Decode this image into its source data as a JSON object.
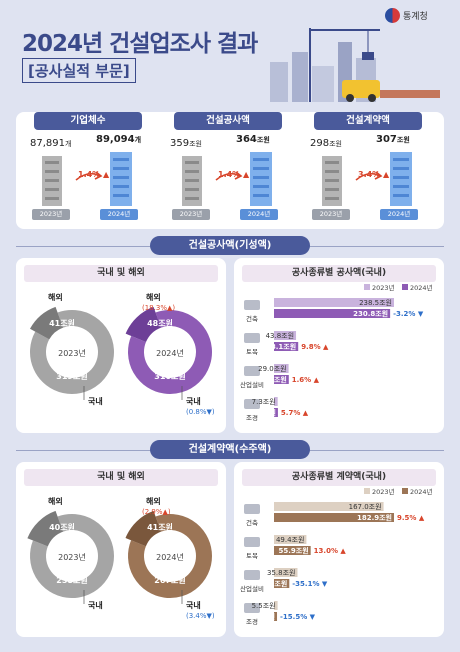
{
  "header": {
    "title": "2024년 건설업조사 결과",
    "subtitle": "[공사실적 부문]",
    "logo_text": "통계청"
  },
  "summary": [
    {
      "label": "기업체수",
      "v2023": "87,891",
      "v2023_unit": "개",
      "v2024": "89,094",
      "v2024_unit": "개",
      "change": "1.4%",
      "year2023": "2023년",
      "year2024": "2024년"
    },
    {
      "label": "건설공사액",
      "v2023": "359",
      "v2023_unit": "조원",
      "v2024": "364",
      "v2024_unit": "조원",
      "change": "1.4%",
      "year2023": "2023년",
      "year2024": "2024년"
    },
    {
      "label": "건설계약액",
      "v2023": "298",
      "v2023_unit": "조원",
      "v2024": "307",
      "v2024_unit": "조원",
      "change": "3.4%",
      "year2023": "2023년",
      "year2024": "2024년"
    }
  ],
  "section1": {
    "title": "건설공사액(기성액)",
    "donut_title": "국내 및 해외",
    "bar_title": "공사종류별 공사액(국내)",
    "d2023": {
      "year": "2023년",
      "overseas_label": "해외",
      "overseas": "41",
      "domestic_label": "국내",
      "domestic": "319",
      "unit": "조원"
    },
    "d2024": {
      "year": "2024년",
      "overseas_label": "해외",
      "overseas_change": "(18.3%",
      "overseas": "48",
      "domestic_label": "국내",
      "domestic_change": "(0.8%",
      "domestic": "316",
      "unit": "조원"
    }
  },
  "section2": {
    "title": "건설계약액(수주액)",
    "donut_title": "국내 및 해외",
    "bar_title": "공사종류별 계약액(국내)",
    "d2023": {
      "year": "2023년",
      "overseas_label": "해외",
      "overseas": "40",
      "domestic_label": "국내",
      "domestic": "258",
      "unit": "조원"
    },
    "d2024": {
      "year": "2024년",
      "overseas_label": "해외",
      "overseas_change": "(2.9%",
      "overseas": "41",
      "domestic_label": "국내",
      "domestic_change": "(3.4%",
      "domestic": "267",
      "unit": "조원"
    }
  },
  "colors": {
    "navy": "#4a5a9b",
    "purple_light": "#c9b3dd",
    "purple": "#8e5bb5",
    "brown_light": "#ddd0c2",
    "brown": "#9c7556",
    "gray": "#a5a5a5",
    "red": "#d8452b",
    "blue": "#2e6fc9"
  },
  "chart_data": [
    {
      "type": "bar",
      "title": "공사종류별 공사액(국내)",
      "categories": [
        "건축",
        "토목",
        "산업설비",
        "조경"
      ],
      "unit": "조원",
      "series": [
        {
          "name": "2023년",
          "values": [
            238.5,
            43.8,
            29.0,
            7.3
          ],
          "color": "#c9b3dd"
        },
        {
          "name": "2024년",
          "values": [
            230.8,
            48.1,
            29.4,
            7.8
          ],
          "color": "#8e5bb5"
        }
      ],
      "changes": [
        "-3.2%",
        "9.8%",
        "1.6%",
        "5.7%"
      ],
      "change_dir": [
        "down",
        "up",
        "up",
        "up"
      ],
      "legend": "top-right"
    },
    {
      "type": "bar",
      "title": "공사종류별 계약액(국내)",
      "categories": [
        "건축",
        "토목",
        "산업설비",
        "조경"
      ],
      "unit": "조원",
      "series": [
        {
          "name": "2023년",
          "values": [
            167.0,
            49.4,
            35.8,
            5.5
          ],
          "color": "#ddd0c2"
        },
        {
          "name": "2024년",
          "values": [
            182.9,
            55.9,
            23.3,
            4.6
          ],
          "color": "#9c7556"
        }
      ],
      "changes": [
        "9.5%",
        "13.0%",
        "-35.1%",
        "-15.5%"
      ],
      "change_dir": [
        "up",
        "up",
        "down",
        "down"
      ],
      "legend": "top-right"
    },
    {
      "type": "pie",
      "title": "국내 및 해외",
      "series": [
        {
          "name": "2023년",
          "labels": [
            "해외",
            "국내"
          ],
          "values": [
            41,
            319
          ]
        },
        {
          "name": "2024년",
          "labels": [
            "해외",
            "국내"
          ],
          "values": [
            48,
            316
          ]
        }
      ]
    },
    {
      "type": "pie",
      "title": "국내 및 해외",
      "series": [
        {
          "name": "2023년",
          "labels": [
            "해외",
            "국내"
          ],
          "values": [
            40,
            258
          ]
        },
        {
          "name": "2024년",
          "labels": [
            "해외",
            "국내"
          ],
          "values": [
            41,
            267
          ]
        }
      ]
    }
  ]
}
